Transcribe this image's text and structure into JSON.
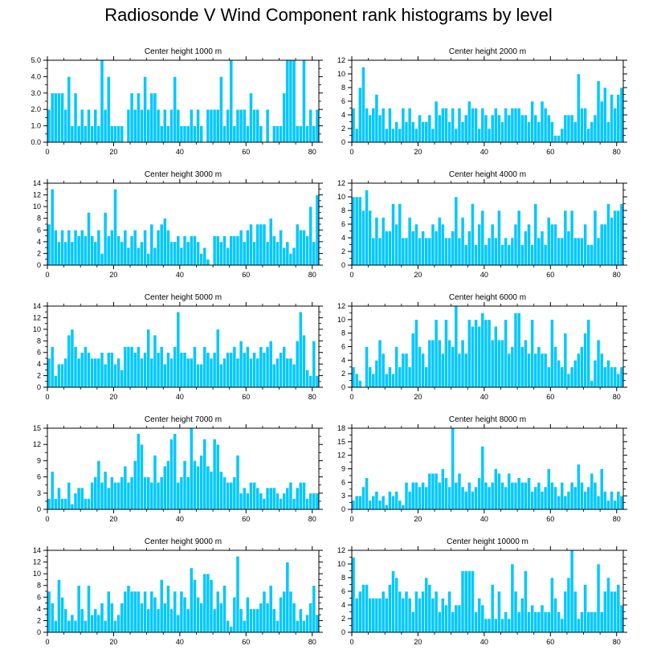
{
  "title": "Radiosonde V Wind Component rank histograms by level",
  "colors": {
    "bar": "#00c8ff",
    "bar_edge": "#ffffff",
    "axis": "#000000",
    "background": "#ffffff"
  },
  "chart_data": [
    {
      "type": "bar",
      "title": "Center height 1000 m",
      "xlim": [
        0,
        82
      ],
      "xticks": [
        0,
        20,
        40,
        60,
        80
      ],
      "ylim": [
        0,
        5
      ],
      "yticks": [
        0,
        1,
        2,
        3,
        4,
        5
      ],
      "ytick_labels": [
        "0.0",
        "1.0",
        "2.0",
        "3.0",
        "4.0",
        "5.0"
      ],
      "values": [
        2,
        3,
        3,
        3,
        3,
        2,
        4,
        1,
        3,
        1,
        2,
        1,
        2,
        1,
        2,
        1,
        5,
        2,
        4,
        1,
        1,
        1,
        1,
        0,
        2,
        3,
        2,
        3,
        2,
        4,
        2,
        3,
        3,
        2,
        1,
        2,
        1,
        2,
        4,
        2,
        1,
        1,
        1,
        2,
        1,
        2,
        1,
        0,
        2,
        2,
        2,
        2,
        4,
        1,
        2,
        5,
        1,
        2,
        2,
        2,
        1,
        3,
        2,
        2,
        1,
        0,
        2,
        0,
        1,
        1,
        1,
        3,
        5,
        5,
        5,
        1,
        1,
        5,
        1,
        2,
        1,
        2
      ]
    },
    {
      "type": "bar",
      "title": "Center height 2000 m",
      "xlim": [
        0,
        82
      ],
      "xticks": [
        0,
        20,
        40,
        60,
        80
      ],
      "ylim": [
        0,
        12
      ],
      "yticks": [
        0,
        2,
        4,
        6,
        8,
        10,
        12
      ],
      "ytick_labels": [
        "0",
        "2",
        "4",
        "6",
        "8",
        "10",
        "12"
      ],
      "values": [
        5,
        2,
        8,
        11,
        5,
        4,
        5,
        7,
        4,
        5,
        2,
        5,
        2,
        3,
        2,
        5,
        3,
        5,
        3,
        2,
        4,
        3,
        3,
        4,
        2,
        6,
        4,
        5,
        5,
        3,
        5,
        2,
        5,
        3,
        4,
        6,
        5,
        5,
        2,
        5,
        4,
        2,
        4,
        5,
        4,
        3,
        5,
        4,
        5,
        5,
        5,
        4,
        4,
        3,
        6,
        4,
        3,
        6,
        5,
        4,
        3,
        1,
        1,
        2,
        4,
        4,
        4,
        3,
        10,
        5,
        5,
        2,
        3,
        4,
        9,
        6,
        8,
        3,
        7,
        5,
        7,
        8
      ]
    },
    {
      "type": "bar",
      "title": "Center height 3000 m",
      "xlim": [
        0,
        82
      ],
      "xticks": [
        0,
        20,
        40,
        60,
        80
      ],
      "ylim": [
        0,
        14
      ],
      "yticks": [
        0,
        2,
        4,
        6,
        8,
        10,
        12,
        14
      ],
      "ytick_labels": [
        "0",
        "2",
        "4",
        "6",
        "8",
        "10",
        "12",
        "14"
      ],
      "values": [
        7,
        13,
        6,
        4,
        6,
        4,
        6,
        4,
        6,
        5,
        6,
        5,
        9,
        5,
        4,
        6,
        2,
        9,
        5,
        6,
        13,
        5,
        4,
        6,
        3,
        5,
        6,
        3,
        4,
        6,
        2,
        7,
        3,
        6,
        7,
        8,
        6,
        4,
        4,
        5,
        3,
        5,
        4,
        5,
        5,
        4,
        2,
        3,
        1,
        0,
        5,
        5,
        4,
        5,
        3,
        5,
        5,
        5,
        6,
        4,
        6,
        7,
        4,
        7,
        7,
        7,
        4,
        8,
        5,
        4,
        6,
        3,
        4,
        2,
        3,
        7,
        6,
        6,
        5,
        10,
        4,
        12
      ]
    },
    {
      "type": "bar",
      "title": "Center height 4000 m",
      "xlim": [
        0,
        82
      ],
      "xticks": [
        0,
        20,
        40,
        60,
        80
      ],
      "ylim": [
        0,
        12
      ],
      "yticks": [
        0,
        2,
        4,
        6,
        8,
        10,
        12
      ],
      "ytick_labels": [
        "0",
        "2",
        "4",
        "6",
        "8",
        "10",
        "12"
      ],
      "values": [
        10,
        10,
        10,
        8,
        11,
        8,
        4,
        7,
        4,
        7,
        5,
        5,
        9,
        6,
        9,
        4,
        4,
        7,
        5,
        6,
        4,
        5,
        4,
        4,
        6,
        5,
        7,
        6,
        4,
        4,
        5,
        10,
        4,
        7,
        3,
        5,
        9,
        3,
        6,
        8,
        3,
        4,
        6,
        4,
        8,
        3,
        4,
        3,
        4,
        6,
        8,
        3,
        5,
        6,
        3,
        9,
        4,
        5,
        3,
        7,
        6,
        6,
        4,
        4,
        8,
        5,
        8,
        4,
        4,
        4,
        6,
        3,
        3,
        8,
        4,
        6,
        6,
        9,
        7,
        8,
        8,
        9
      ]
    },
    {
      "type": "bar",
      "title": "Center height 5000 m",
      "xlim": [
        0,
        82
      ],
      "xticks": [
        0,
        20,
        40,
        60,
        80
      ],
      "ylim": [
        0,
        14
      ],
      "yticks": [
        0,
        2,
        4,
        6,
        8,
        10,
        12,
        14
      ],
      "ytick_labels": [
        "0",
        "2",
        "4",
        "6",
        "8",
        "10",
        "12",
        "14"
      ],
      "values": [
        5,
        7,
        2,
        4,
        4,
        5,
        9,
        10,
        7,
        5,
        6,
        7,
        6,
        5,
        5,
        5,
        6,
        4,
        6,
        6,
        4,
        5,
        3,
        7,
        7,
        7,
        6,
        7,
        5,
        6,
        10,
        5,
        9,
        6,
        7,
        4,
        6,
        5,
        7,
        13,
        6,
        6,
        5,
        5,
        7,
        4,
        4,
        7,
        6,
        5,
        6,
        10,
        4,
        5,
        6,
        6,
        7,
        5,
        8,
        6,
        7,
        5,
        6,
        5,
        7,
        6,
        7,
        8,
        4,
        5,
        6,
        7,
        5,
        5,
        4,
        8,
        13,
        9,
        3,
        2,
        8,
        2
      ]
    },
    {
      "type": "bar",
      "title": "Center height 6000 m",
      "xlim": [
        0,
        82
      ],
      "xticks": [
        0,
        20,
        40,
        60,
        80
      ],
      "ylim": [
        0,
        12
      ],
      "yticks": [
        0,
        2,
        4,
        6,
        8,
        10,
        12
      ],
      "ytick_labels": [
        "0",
        "2",
        "4",
        "6",
        "8",
        "10",
        "12"
      ],
      "values": [
        3,
        2,
        1,
        0,
        6,
        3,
        2,
        4,
        7,
        5,
        2,
        3,
        2,
        6,
        3,
        5,
        5,
        3,
        8,
        10,
        6,
        5,
        3,
        7,
        7,
        10,
        7,
        5,
        10,
        7,
        6,
        12,
        5,
        7,
        5,
        10,
        9,
        10,
        9,
        11,
        10,
        10,
        7,
        9,
        7,
        7,
        10,
        5,
        6,
        11,
        11,
        6,
        7,
        5,
        10,
        5,
        6,
        5,
        5,
        3,
        10,
        6,
        4,
        3,
        8,
        2,
        3,
        4,
        5,
        6,
        8,
        10,
        1,
        4,
        7,
        5,
        3,
        4,
        3,
        3,
        2,
        3
      ]
    },
    {
      "type": "bar",
      "title": "Center height 7000 m",
      "xlim": [
        0,
        82
      ],
      "xticks": [
        0,
        20,
        40,
        60,
        80
      ],
      "ylim": [
        0,
        15
      ],
      "yticks": [
        0,
        3,
        6,
        9,
        12,
        15
      ],
      "ytick_labels": [
        "0",
        "3",
        "6",
        "9",
        "12",
        "15"
      ],
      "values": [
        2,
        7,
        2,
        4,
        2,
        2,
        5,
        1,
        3,
        4,
        4,
        2,
        2,
        5,
        6,
        9,
        5,
        7,
        4,
        6,
        5,
        5,
        6,
        8,
        5,
        6,
        9,
        14,
        12,
        6,
        6,
        5,
        10,
        5,
        6,
        8,
        9,
        13,
        14,
        5,
        6,
        9,
        6,
        15,
        9,
        8,
        10,
        13,
        8,
        7,
        13,
        12,
        7,
        6,
        5,
        5,
        6,
        10,
        3,
        4,
        3,
        5,
        5,
        4,
        3,
        2,
        4,
        4,
        4,
        3,
        2,
        3,
        4,
        5,
        2,
        4,
        5,
        5,
        2,
        3,
        3,
        3
      ]
    },
    {
      "type": "bar",
      "title": "Center height 8000 m",
      "xlim": [
        0,
        82
      ],
      "xticks": [
        0,
        20,
        40,
        60,
        80
      ],
      "ylim": [
        0,
        18
      ],
      "yticks": [
        0,
        3,
        6,
        9,
        12,
        15,
        18
      ],
      "ytick_labels": [
        "0",
        "3",
        "6",
        "9",
        "12",
        "15",
        "18"
      ],
      "values": [
        2,
        3,
        3,
        5,
        7,
        2,
        3,
        4,
        2,
        3,
        1,
        4,
        3,
        4,
        2,
        1,
        6,
        4,
        6,
        6,
        5,
        6,
        5,
        8,
        8,
        8,
        6,
        9,
        7,
        5,
        18,
        6,
        8,
        5,
        4,
        6,
        4,
        5,
        7,
        14,
        6,
        5,
        6,
        9,
        8,
        6,
        5,
        8,
        6,
        6,
        7,
        6,
        6,
        7,
        4,
        5,
        6,
        4,
        5,
        9,
        6,
        5,
        3,
        6,
        3,
        4,
        6,
        5,
        10,
        6,
        4,
        5,
        8,
        6,
        3,
        9,
        4,
        2,
        4,
        2,
        4,
        3
      ]
    },
    {
      "type": "bar",
      "title": "Center height 9000 m",
      "xlim": [
        0,
        82
      ],
      "xticks": [
        0,
        20,
        40,
        60,
        80
      ],
      "ylim": [
        0,
        14
      ],
      "yticks": [
        0,
        2,
        4,
        6,
        8,
        10,
        12,
        14
      ],
      "ytick_labels": [
        "0",
        "2",
        "4",
        "6",
        "8",
        "10",
        "12",
        "14"
      ],
      "values": [
        7,
        5,
        2,
        9,
        6,
        4,
        2,
        3,
        2,
        8,
        4,
        2,
        8,
        3,
        4,
        3,
        5,
        2,
        7,
        5,
        2,
        3,
        5,
        7,
        8,
        7,
        7,
        7,
        5,
        7,
        4,
        7,
        6,
        4,
        9,
        5,
        8,
        4,
        7,
        3,
        7,
        6,
        4,
        11,
        9,
        6,
        5,
        10,
        10,
        9,
        4,
        7,
        5,
        8,
        2,
        1,
        6,
        13,
        4,
        2,
        6,
        4,
        4,
        4,
        5,
        7,
        5,
        8,
        4,
        2,
        6,
        7,
        12,
        7,
        5,
        2,
        4,
        2,
        3,
        5,
        8,
        3
      ]
    },
    {
      "type": "bar",
      "title": "Center height 10000 m",
      "xlim": [
        0,
        82
      ],
      "xticks": [
        0,
        20,
        40,
        60,
        80
      ],
      "ylim": [
        0,
        12
      ],
      "yticks": [
        0,
        2,
        4,
        6,
        8,
        10,
        12
      ],
      "ytick_labels": [
        "0",
        "2",
        "4",
        "6",
        "8",
        "10",
        "12"
      ],
      "values": [
        11,
        5,
        6,
        7,
        7,
        5,
        5,
        5,
        5,
        6,
        5,
        7,
        9,
        8,
        6,
        5,
        6,
        5,
        3,
        6,
        5,
        6,
        8,
        7,
        5,
        6,
        3,
        5,
        4,
        6,
        3,
        4,
        4,
        9,
        9,
        9,
        9,
        3,
        5,
        4,
        2,
        2,
        7,
        2,
        6,
        2,
        3,
        2,
        10,
        6,
        3,
        5,
        9,
        3,
        4,
        3,
        3,
        4,
        3,
        3,
        8,
        5,
        3,
        2,
        6,
        8,
        12,
        6,
        2,
        3,
        7,
        3,
        3,
        3,
        10,
        3,
        6,
        8,
        6,
        6,
        7,
        4
      ]
    }
  ]
}
